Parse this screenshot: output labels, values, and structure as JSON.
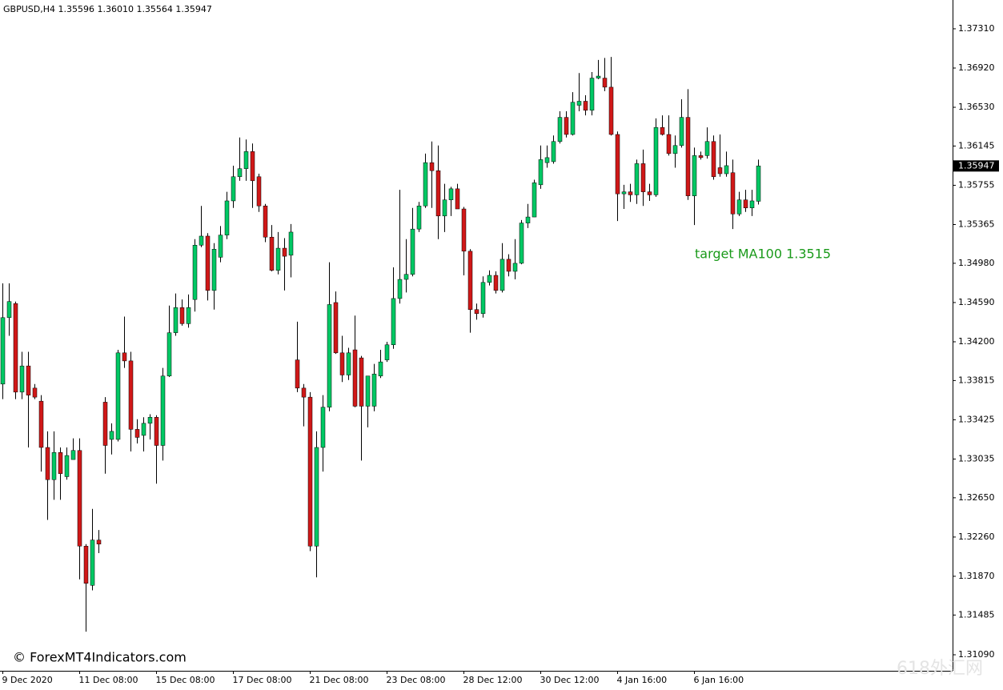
{
  "chart_data": {
    "type": "candlestick",
    "title": "GBPUSD,H4  1.35596 1.36010 1.35564 1.35947",
    "categories": [
      "9 Dec 2020",
      null,
      null,
      null,
      null,
      null,
      null,
      null,
      null,
      null,
      null,
      null,
      "11 Dec 08:00",
      null,
      null,
      null,
      null,
      null,
      null,
      null,
      null,
      null,
      null,
      null,
      "15 Dec 08:00",
      null,
      null,
      null,
      null,
      null,
      null,
      null,
      null,
      null,
      null,
      null,
      "17 Dec 08:00",
      null,
      null,
      null,
      null,
      null,
      null,
      null,
      null,
      null,
      null,
      null,
      "21 Dec 08:00",
      null,
      null,
      null,
      null,
      null,
      null,
      null,
      null,
      null,
      null,
      null,
      "23 Dec 08:00",
      null,
      null,
      null,
      null,
      null,
      null,
      null,
      null,
      null,
      null,
      null,
      "28 Dec 12:00",
      null,
      null,
      null,
      null,
      null,
      null,
      null,
      null,
      null,
      null,
      null,
      "30 Dec 12:00",
      null,
      null,
      null,
      null,
      null,
      null,
      null,
      null,
      null,
      null,
      null,
      "4 Jan 16:00",
      null,
      null,
      null,
      null,
      null,
      null,
      null,
      null,
      null,
      null,
      null,
      "6 Jan 16:00",
      null,
      null,
      null,
      null,
      null,
      null,
      null,
      null,
      null,
      null
    ],
    "open": [
      1.3378,
      1.3444,
      1.3458,
      1.337,
      1.3396,
      1.3374,
      1.3361,
      1.3315,
      1.3283,
      1.331,
      1.3286,
      1.3303,
      1.3312,
      1.3217,
      1.3178,
      1.3223,
      1.336,
      1.3323,
      1.3323,
      1.3409,
      1.3401,
      1.3333,
      1.3327,
      1.3339,
      1.3345,
      1.3317,
      1.3386,
      1.3429,
      1.3454,
      1.3438,
      1.3462,
      1.3516,
      1.3525,
      1.3471,
      1.3504,
      1.3526,
      1.356,
      1.3584,
      1.3592,
      1.3609,
      1.3584,
      1.3555,
      1.3524,
      1.3491,
      1.3513,
      1.3506,
      1.3402,
      1.3374,
      1.3365,
      1.3217,
      1.3315,
      1.3355,
      1.3459,
      1.3409,
      1.3387,
      1.3412,
      1.3404,
      1.3356,
      1.3356,
      1.3386,
      1.3402,
      1.3417,
      1.3463,
      1.3482,
      1.3487,
      1.3532,
      1.3555,
      1.3598,
      1.359,
      1.3545,
      1.3561,
      1.3572,
      1.3552,
      1.351,
      1.3452,
      1.3448,
      1.3479,
      1.3486,
      1.3471,
      1.3502,
      1.349,
      1.3498,
      1.3538,
      1.3544,
      1.3576,
      1.3598,
      1.3599,
      1.3619,
      1.3643,
      1.3626,
      1.3655,
      1.3659,
      1.365,
      1.3682,
      1.3682,
      1.3673,
      1.3626,
      1.3567,
      1.3569,
      1.3566,
      1.3597,
      1.3569,
      1.3566,
      1.3633,
      1.3626,
      1.3607,
      1.3615,
      1.3643,
      1.3565,
      1.3605,
      1.3605,
      1.3619,
      1.3593,
      1.3587,
      1.3588,
      1.3547,
      1.3561,
      1.3553,
      1.35596
    ],
    "high": [
      1.3478,
      1.3478,
      1.346,
      1.341,
      1.341,
      1.3378,
      1.3367,
      1.3331,
      1.3331,
      1.3315,
      1.3315,
      1.3324,
      1.3324,
      1.3219,
      1.3254,
      1.3233,
      1.3365,
      1.3339,
      1.3412,
      1.3445,
      1.341,
      1.3343,
      1.3345,
      1.3348,
      1.3347,
      1.3394,
      1.3456,
      1.3468,
      1.3462,
      1.3467,
      1.3522,
      1.3555,
      1.3528,
      1.3518,
      1.3535,
      1.3569,
      1.3595,
      1.3623,
      1.3621,
      1.3617,
      1.3587,
      1.3557,
      1.3536,
      1.3529,
      1.3523,
      1.3537,
      1.344,
      1.3378,
      1.337,
      1.3331,
      1.3367,
      1.3499,
      1.347,
      1.3426,
      1.3414,
      1.3446,
      1.3406,
      1.3386,
      1.3398,
      1.3412,
      1.342,
      1.3494,
      1.3571,
      1.3522,
      1.3553,
      1.3559,
      1.3607,
      1.3619,
      1.3615,
      1.3577,
      1.3574,
      1.3577,
      1.3554,
      1.3512,
      1.3458,
      1.3485,
      1.3491,
      1.349,
      1.3518,
      1.3507,
      1.3522,
      1.3541,
      1.3557,
      1.3581,
      1.3615,
      1.3615,
      1.3625,
      1.3649,
      1.3649,
      1.3668,
      1.3687,
      1.3665,
      1.3688,
      1.37,
      1.3702,
      1.3703,
      1.3629,
      1.3576,
      1.3577,
      1.3601,
      1.3611,
      1.3577,
      1.3642,
      1.3645,
      1.3645,
      1.3625,
      1.3661,
      1.3671,
      1.3613,
      1.3609,
      1.3633,
      1.3625,
      1.3626,
      1.3609,
      1.3601,
      1.3569,
      1.3571,
      1.3571,
      1.3601
    ],
    "low": [
      1.3363,
      1.3426,
      1.3363,
      1.3363,
      1.3315,
      1.3363,
      1.3291,
      1.3243,
      1.3263,
      1.3263,
      1.3283,
      1.3303,
      1.3184,
      1.3132,
      1.3173,
      1.321,
      1.3289,
      1.3308,
      1.3321,
      1.3394,
      1.3311,
      1.3319,
      1.3311,
      1.3323,
      1.3279,
      1.3302,
      1.3385,
      1.3426,
      1.3436,
      1.3434,
      1.345,
      1.3514,
      1.3461,
      1.3452,
      1.3499,
      1.3522,
      1.3553,
      1.358,
      1.358,
      1.3553,
      1.3549,
      1.3519,
      1.349,
      1.3487,
      1.3471,
      1.3484,
      1.337,
      1.3336,
      1.3212,
      1.3186,
      1.3291,
      1.3351,
      1.3408,
      1.338,
      1.3382,
      1.3355,
      1.3302,
      1.3335,
      1.3351,
      1.3384,
      1.34,
      1.3413,
      1.3458,
      1.3469,
      1.3485,
      1.3529,
      1.3553,
      1.3553,
      1.3522,
      1.3529,
      1.3545,
      1.3552,
      1.3486,
      1.3429,
      1.3442,
      1.3444,
      1.3476,
      1.3468,
      1.3469,
      1.3485,
      1.3482,
      1.3497,
      1.3533,
      1.3544,
      1.3572,
      1.3593,
      1.3597,
      1.3617,
      1.3623,
      1.3625,
      1.3649,
      1.3645,
      1.3645,
      1.3681,
      1.3669,
      1.3625,
      1.354,
      1.3552,
      1.3559,
      1.3557,
      1.3555,
      1.356,
      1.3564,
      1.3625,
      1.3605,
      1.3593,
      1.3613,
      1.3561,
      1.3536,
      1.3601,
      1.3602,
      1.3581,
      1.3584,
      1.3584,
      1.3532,
      1.3545,
      1.3549,
      1.3545,
      1.35564
    ],
    "close": [
      1.3444,
      1.346,
      1.337,
      1.3396,
      1.3367,
      1.3365,
      1.3315,
      1.3283,
      1.331,
      1.3289,
      1.3307,
      1.3312,
      1.3217,
      1.318,
      1.3223,
      1.3219,
      1.3317,
      1.3331,
      1.3409,
      1.3401,
      1.3333,
      1.3325,
      1.3339,
      1.3345,
      1.3317,
      1.3386,
      1.3429,
      1.3454,
      1.3438,
      1.3454,
      1.3516,
      1.3525,
      1.3471,
      1.3512,
      1.3526,
      1.356,
      1.3584,
      1.3592,
      1.3609,
      1.358,
      1.3555,
      1.3524,
      1.3491,
      1.3513,
      1.3505,
      1.3529,
      1.3374,
      1.3365,
      1.3217,
      1.3315,
      1.3355,
      1.3457,
      1.3409,
      1.3387,
      1.3409,
      1.3356,
      1.3356,
      1.3386,
      1.3388,
      1.34,
      1.3417,
      1.3463,
      1.3482,
      1.3487,
      1.3532,
      1.3555,
      1.3598,
      1.359,
      1.3545,
      1.3561,
      1.3572,
      1.3552,
      1.351,
      1.3452,
      1.3448,
      1.3479,
      1.3486,
      1.3471,
      1.3502,
      1.349,
      1.3498,
      1.3538,
      1.3544,
      1.3578,
      1.3601,
      1.3603,
      1.3619,
      1.3643,
      1.3626,
      1.3658,
      1.3659,
      1.365,
      1.3682,
      1.3684,
      1.3673,
      1.3626,
      1.3567,
      1.3569,
      1.3566,
      1.3597,
      1.3569,
      1.3566,
      1.3633,
      1.3626,
      1.3607,
      1.3615,
      1.3643,
      1.3565,
      1.3605,
      1.3603,
      1.3619,
      1.3584,
      1.3587,
      1.3595,
      1.3547,
      1.3561,
      1.3553,
      1.356,
      1.35947
    ],
    "up_color": "#00c864",
    "down_color": "#d01818",
    "ylim": [
      1.30931,
      1.37596
    ],
    "yticks": [
      {
        "value": 1.3731,
        "label": "1.37310"
      },
      {
        "value": 1.3692,
        "label": "1.36920"
      },
      {
        "value": 1.3653,
        "label": "1.36530"
      },
      1.36145,
      1.35755,
      1.35365,
      {
        "value": 1.3498,
        "label": "1.34980"
      },
      {
        "value": 1.3459,
        "label": "1.34590"
      },
      {
        "value": 1.342,
        "label": "1.34200"
      },
      1.33815,
      1.33425,
      1.33035,
      {
        "value": 1.3265,
        "label": "1.32650"
      },
      {
        "value": 1.3226,
        "label": "1.32260"
      },
      {
        "value": 1.3187,
        "label": "1.31870"
      },
      1.31485,
      {
        "value": 1.3109,
        "label": "1.31090"
      }
    ],
    "last_label": "1.35947",
    "annotation": "target MA100 1.3515",
    "annotation_color": "#1a9a1a",
    "watermark": "© ForexMT4Indicators.com",
    "corner_text": "618外汇网"
  }
}
